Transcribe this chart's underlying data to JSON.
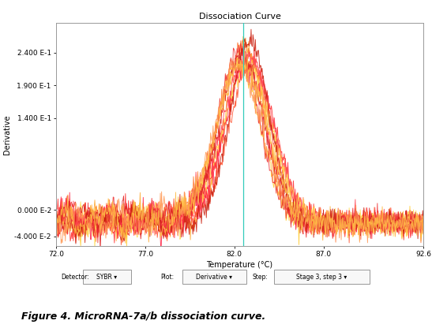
{
  "title": "Dissociation Curve",
  "xlabel": "Temperature (°C)",
  "ylabel": "Derivative",
  "xlim": [
    72.0,
    92.6
  ],
  "ylim": [
    -0.055,
    0.285
  ],
  "xticks": [
    72.0,
    77.0,
    82.0,
    87.0,
    92.6
  ],
  "xtick_labels": [
    "72.0",
    "77.0",
    "82.0",
    "87.0",
    "92.6"
  ],
  "ytick_positions": [
    0.24,
    0.19,
    0.14,
    0.0,
    -0.04
  ],
  "ytick_labels": [
    "2.400 E-1",
    "1.900 E-1",
    "1.400 E-1",
    "0.000 E-2",
    "-4.000 E-2"
  ],
  "vline_x": 82.5,
  "vline_color": "#33ccbb",
  "peak_temp": 82.5,
  "colors": [
    "#ff3333",
    "#ff5533",
    "#ff7733",
    "#ffaa33",
    "#ffcc33",
    "#ffdd55",
    "#ff2244",
    "#ff4455",
    "#ee3333",
    "#dd2222",
    "#cc2211",
    "#ff9955",
    "#ffbb44"
  ],
  "figure_caption": "Figure 4. MicroRNA-7a/b dissociation curve.",
  "background_color": "#ffffff",
  "plot_bg_color": "#ffffff",
  "num_curves": 13,
  "figsize": [
    5.47,
    4.16
  ],
  "dpi": 100
}
